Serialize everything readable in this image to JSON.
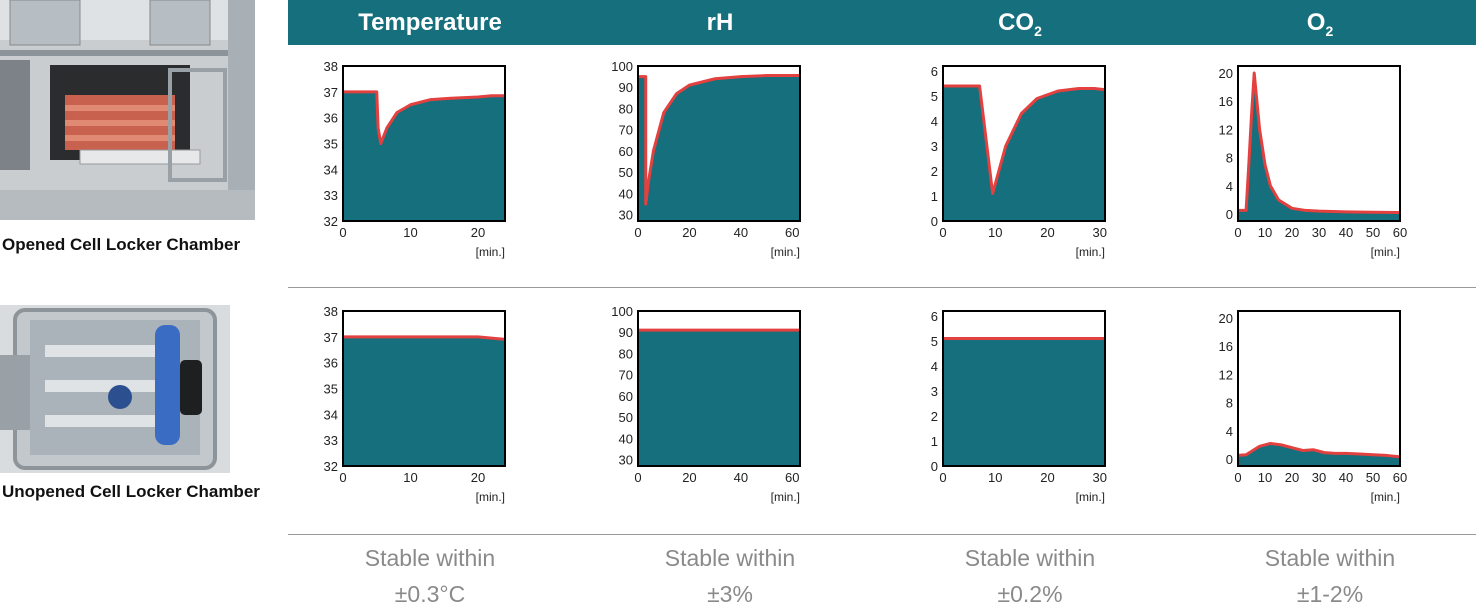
{
  "photos": [
    {
      "label": "Opened Cell Locker Chamber"
    },
    {
      "label": "Unopened Cell Locker Chamber"
    }
  ],
  "headers": [
    {
      "text": "Temperature",
      "sub": ""
    },
    {
      "text": "rH",
      "sub": ""
    },
    {
      "text": "CO",
      "sub": "2"
    },
    {
      "text": "O",
      "sub": "2"
    }
  ],
  "footers": [
    {
      "line1": "Stable within",
      "line2": "±0.3°C"
    },
    {
      "line1": "Stable within",
      "line2": "±3%"
    },
    {
      "line1": "Stable within",
      "line2": "±0.2%"
    },
    {
      "line1": "Stable within",
      "line2": "±1-2%"
    }
  ],
  "colors": {
    "fill": "#156f7d",
    "line": "#e2413f",
    "header_bg": "#156f7d"
  },
  "chart_data": [
    {
      "type": "area",
      "xlabel": "[min.]",
      "xlim": [
        0,
        24
      ],
      "ylim": [
        32,
        38
      ],
      "xticks": [
        0,
        10,
        20
      ],
      "yticks": [
        32,
        33,
        34,
        35,
        36,
        37,
        38
      ],
      "x": [
        0,
        5,
        5.2,
        5.6,
        6.5,
        8,
        10,
        13,
        16,
        20,
        22,
        24
      ],
      "y": [
        37,
        37,
        35.6,
        35,
        35.6,
        36.2,
        36.5,
        36.7,
        36.75,
        36.8,
        36.85,
        36.85
      ]
    },
    {
      "type": "area",
      "xlabel": "[min.]",
      "xlim": [
        0,
        63
      ],
      "ylim": [
        27,
        100
      ],
      "xticks": [
        0,
        20,
        40,
        60
      ],
      "yticks": [
        30,
        40,
        50,
        60,
        70,
        80,
        90,
        100
      ],
      "x": [
        0,
        3,
        3,
        4,
        6,
        10,
        15,
        20,
        30,
        40,
        50,
        60,
        63
      ],
      "y": [
        95,
        95,
        35,
        45,
        60,
        78,
        87,
        91,
        94,
        95,
        95.5,
        95.5,
        95.5
      ]
    },
    {
      "type": "area",
      "xlabel": "[min.]",
      "xlim": [
        0,
        31
      ],
      "ylim": [
        0,
        6.2
      ],
      "xticks": [
        0,
        10,
        20,
        30
      ],
      "yticks": [
        0,
        1,
        2,
        3,
        4,
        5,
        6
      ],
      "x": [
        0,
        7,
        9.5,
        12,
        15,
        18,
        22,
        26,
        29,
        31
      ],
      "y": [
        5.4,
        5.4,
        1.1,
        3.0,
        4.3,
        4.9,
        5.2,
        5.3,
        5.3,
        5.25
      ]
    },
    {
      "type": "area",
      "xlabel": "[min.]",
      "xlim": [
        0,
        60
      ],
      "ylim": [
        -1,
        21
      ],
      "xticks": [
        0,
        10,
        20,
        30,
        40,
        50,
        60
      ],
      "yticks": [
        0,
        4,
        8,
        12,
        16,
        20
      ],
      "x": [
        0,
        3,
        4,
        5,
        6,
        8,
        10,
        12,
        15,
        20,
        25,
        30,
        40,
        50,
        60
      ],
      "y": [
        0.5,
        0.5,
        7,
        14,
        20,
        12,
        7,
        4,
        2,
        0.8,
        0.5,
        0.4,
        0.3,
        0.25,
        0.2
      ]
    },
    {
      "type": "area",
      "xlabel": "[min.]",
      "xlim": [
        0,
        24
      ],
      "ylim": [
        32,
        38
      ],
      "xticks": [
        0,
        10,
        20
      ],
      "yticks": [
        32,
        33,
        34,
        35,
        36,
        37,
        38
      ],
      "x": [
        0,
        20,
        22,
        24
      ],
      "y": [
        37,
        37,
        36.95,
        36.9
      ]
    },
    {
      "type": "area",
      "xlabel": "[min.]",
      "xlim": [
        0,
        63
      ],
      "ylim": [
        27,
        100
      ],
      "xticks": [
        0,
        20,
        40,
        60
      ],
      "yticks": [
        30,
        40,
        50,
        60,
        70,
        80,
        90,
        100
      ],
      "x": [
        0,
        63
      ],
      "y": [
        91,
        91
      ]
    },
    {
      "type": "area",
      "xlabel": "[min.]",
      "xlim": [
        0,
        31
      ],
      "ylim": [
        0,
        6.2
      ],
      "xticks": [
        0,
        10,
        20,
        30
      ],
      "yticks": [
        0,
        1,
        2,
        3,
        4,
        5,
        6
      ],
      "x": [
        0,
        31
      ],
      "y": [
        5.1,
        5.1
      ]
    },
    {
      "type": "area",
      "xlabel": "[min.]",
      "xlim": [
        0,
        60
      ],
      "ylim": [
        -1,
        21
      ],
      "xticks": [
        0,
        10,
        20,
        30,
        40,
        50,
        60
      ],
      "yticks": [
        0,
        4,
        8,
        12,
        16,
        20
      ],
      "x": [
        0,
        3,
        8,
        12,
        16,
        20,
        24,
        28,
        32,
        36,
        40,
        45,
        50,
        55,
        60
      ],
      "y": [
        0.5,
        0.6,
        1.8,
        2.2,
        2.0,
        1.6,
        1.2,
        1.3,
        0.9,
        0.8,
        0.8,
        0.7,
        0.6,
        0.5,
        0.3
      ]
    }
  ]
}
